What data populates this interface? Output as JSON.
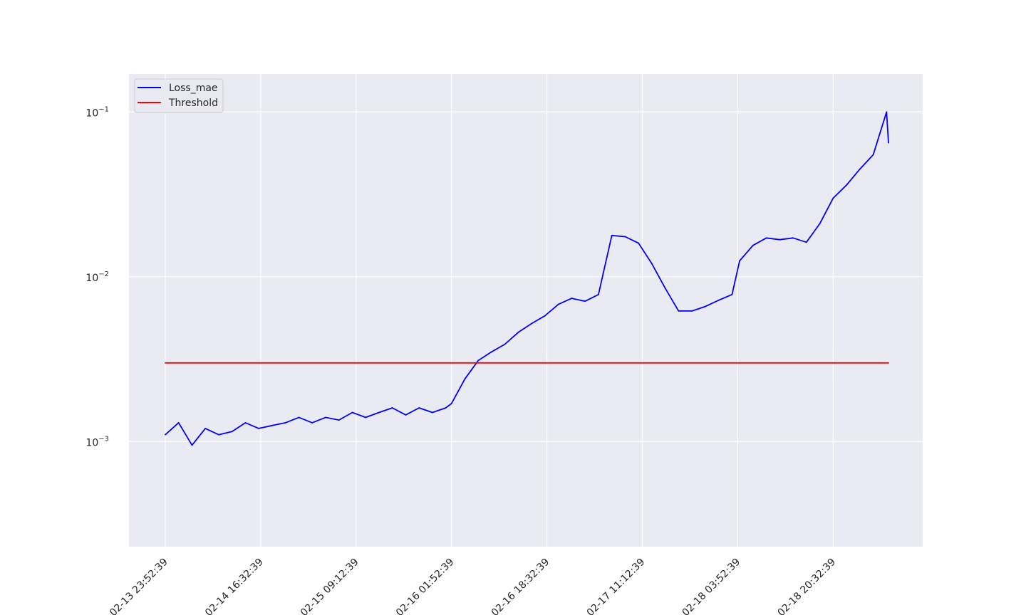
{
  "chart_data": {
    "type": "line",
    "title": "",
    "xlabel": "",
    "ylabel": "",
    "y_scale": "log",
    "ylim": [
      0.00023,
      0.17
    ],
    "x_range": [
      "2024-02-13 23:52:39",
      "2024-02-19 06:12:39"
    ],
    "grid": true,
    "legend_placement": "top-left",
    "x_tick_labels": [
      "2024-02-13 23:52:39",
      "2024-02-14 16:32:39",
      "2024-02-15 09:12:39",
      "2024-02-16 01:52:39",
      "2024-02-16 18:32:39",
      "2024-02-17 11:12:39",
      "2024-02-18 03:52:39",
      "2024-02-18 20:32:39"
    ],
    "y_tick_labels": [
      {
        "value": 0.001,
        "base": "10",
        "exp": "−3"
      },
      {
        "value": 0.01,
        "base": "10",
        "exp": "−2"
      },
      {
        "value": 0.1,
        "base": "10",
        "exp": "−1"
      }
    ],
    "series": [
      {
        "name": "Loss_mae",
        "color": "#0000ff",
        "x": [
          "2024-02-13 23:52:39",
          "2024-02-14 02:12:39",
          "2024-02-14 04:32:39",
          "2024-02-14 06:52:39",
          "2024-02-14 09:12:39",
          "2024-02-14 11:32:39",
          "2024-02-14 13:52:39",
          "2024-02-14 16:12:39",
          "2024-02-14 18:32:39",
          "2024-02-14 20:52:39",
          "2024-02-14 23:12:39",
          "2024-02-15 01:32:39",
          "2024-02-15 03:52:39",
          "2024-02-15 06:12:39",
          "2024-02-15 08:32:39",
          "2024-02-15 10:52:39",
          "2024-02-15 13:12:39",
          "2024-02-15 15:32:39",
          "2024-02-15 17:52:39",
          "2024-02-15 20:12:39",
          "2024-02-15 22:32:39",
          "2024-02-16 00:52:39",
          "2024-02-16 01:52:39",
          "2024-02-16 04:12:39",
          "2024-02-16 06:32:39",
          "2024-02-16 08:52:39",
          "2024-02-16 11:12:39",
          "2024-02-16 13:32:39",
          "2024-02-16 15:52:39",
          "2024-02-16 18:12:39",
          "2024-02-16 20:32:39",
          "2024-02-16 22:52:39",
          "2024-02-17 01:12:39",
          "2024-02-17 03:32:39",
          "2024-02-17 05:52:39",
          "2024-02-17 08:12:39",
          "2024-02-17 10:32:39",
          "2024-02-17 12:52:39",
          "2024-02-17 15:12:39",
          "2024-02-17 17:32:39",
          "2024-02-17 19:52:39",
          "2024-02-17 22:12:39",
          "2024-02-18 00:32:39",
          "2024-02-18 02:52:39",
          "2024-02-18 04:12:39",
          "2024-02-18 06:32:39",
          "2024-02-18 08:52:39",
          "2024-02-18 11:12:39",
          "2024-02-18 13:32:39",
          "2024-02-18 15:52:39",
          "2024-02-18 18:12:39",
          "2024-02-18 20:32:39",
          "2024-02-18 22:52:39",
          "2024-02-19 01:12:39",
          "2024-02-19 03:32:39",
          "2024-02-19 05:52:39",
          "2024-02-19 06:12:39"
        ],
        "y": [
          0.0011,
          0.0013,
          0.00095,
          0.0012,
          0.0011,
          0.00115,
          0.0013,
          0.0012,
          0.00125,
          0.0013,
          0.0014,
          0.0013,
          0.0014,
          0.00135,
          0.0015,
          0.0014,
          0.0015,
          0.0016,
          0.00145,
          0.0016,
          0.0015,
          0.0016,
          0.0017,
          0.0024,
          0.0031,
          0.0035,
          0.0039,
          0.0046,
          0.0052,
          0.0058,
          0.0068,
          0.0074,
          0.0071,
          0.0078,
          0.0178,
          0.0175,
          0.016,
          0.012,
          0.0085,
          0.0062,
          0.0062,
          0.0066,
          0.0072,
          0.0078,
          0.0125,
          0.0155,
          0.0172,
          0.0168,
          0.0172,
          0.0162,
          0.021,
          0.03,
          0.036,
          0.045,
          0.055,
          0.1,
          0.065
        ]
      },
      {
        "name": "Threshold",
        "color": "#ff0000",
        "x": [
          "2024-02-13 23:52:39",
          "2024-02-19 06:12:39"
        ],
        "y": [
          0.003,
          0.003
        ]
      }
    ]
  }
}
